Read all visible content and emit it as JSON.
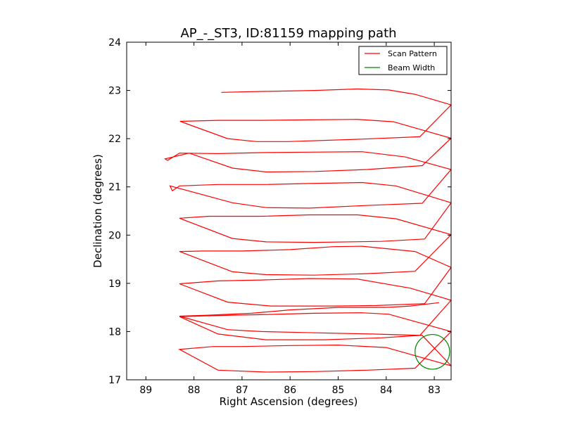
{
  "chart_data": {
    "type": "line",
    "title": "AP_-_ST3, ID:81159 mapping path",
    "xlabel": "Right Ascension (degrees)",
    "ylabel": "Declination (degrees)",
    "xlim": [
      89.4,
      82.65
    ],
    "ylim": [
      17,
      24
    ],
    "x_ticks": [
      "89",
      "88",
      "87",
      "86",
      "85",
      "84",
      "83"
    ],
    "y_ticks": [
      "17",
      "18",
      "19",
      "20",
      "21",
      "22",
      "23",
      "24"
    ],
    "grid": false,
    "legend_position": "top-right",
    "colors": {
      "scan": "#ff0000",
      "beam": "#008000"
    },
    "series": [
      {
        "name": "Scan Pattern",
        "x": [
          87.43,
          86.5,
          85.5,
          84.6,
          83.95,
          83.4,
          82.65,
          83.3,
          84.5,
          86.05,
          86.7,
          87.3,
          88.29,
          87.5,
          86.6,
          85.6,
          84.6,
          83.85,
          82.65,
          83.25,
          84.4,
          85.5,
          86.5,
          87.2,
          88.1,
          88.6,
          88.55,
          88.3,
          87.5,
          86.6,
          85.6,
          84.5,
          83.6,
          82.65,
          83.25,
          84.3,
          85.6,
          86.5,
          87.2,
          88.5,
          88.45,
          88.3,
          87.5,
          86.5,
          85.6,
          84.5,
          83.8,
          82.65,
          83.2,
          84.1,
          85.5,
          86.5,
          87.2,
          88.3,
          87.7,
          86.6,
          85.6,
          84.6,
          83.8,
          82.65,
          83.4,
          84.4,
          85.5,
          86.5,
          87.2,
          88.3,
          87.8,
          87.0,
          86.0,
          85.1,
          84.5,
          83.4,
          82.65,
          83.2,
          84.2,
          85.1,
          86.4,
          87.3,
          88.3,
          87.5,
          86.6,
          85.6,
          84.6,
          83.5,
          82.65,
          83.3,
          84.1,
          85.3,
          86.5,
          87.5,
          88.3,
          87.2,
          86.6,
          85.5,
          84.5,
          83.95,
          82.65,
          83.4,
          84.4,
          85.5,
          86.5,
          87.5,
          88.3,
          87.6,
          87.0,
          86.0,
          85.0,
          84.0,
          83.4,
          82.65,
          83.25,
          84.3,
          85.7,
          86.6,
          87.3,
          88.3,
          87.7,
          86.8,
          86.0,
          85.0,
          84.0,
          83.5,
          82.9
        ],
        "y": [
          22.96,
          22.98,
          23.0,
          23.03,
          23.01,
          22.92,
          22.7,
          22.04,
          21.99,
          21.94,
          21.94,
          22.0,
          22.36,
          22.38,
          22.38,
          22.39,
          22.4,
          22.35,
          22.01,
          21.44,
          21.36,
          21.32,
          21.31,
          21.39,
          21.7,
          21.58,
          21.55,
          21.7,
          21.69,
          21.71,
          21.72,
          21.73,
          21.62,
          21.36,
          20.66,
          20.62,
          20.56,
          20.57,
          20.67,
          21.02,
          20.92,
          21.02,
          21.05,
          21.05,
          21.07,
          21.09,
          21.02,
          20.67,
          19.92,
          19.87,
          19.85,
          19.86,
          19.93,
          20.35,
          20.39,
          20.39,
          20.42,
          20.42,
          20.34,
          20.01,
          19.25,
          19.2,
          19.17,
          19.18,
          19.24,
          19.66,
          19.67,
          19.67,
          19.7,
          19.76,
          19.77,
          19.66,
          19.33,
          18.58,
          18.54,
          18.53,
          18.53,
          18.61,
          18.99,
          19.05,
          19.07,
          19.1,
          19.09,
          18.9,
          18.65,
          17.92,
          17.87,
          17.83,
          17.83,
          17.95,
          18.31,
          18.34,
          18.35,
          18.38,
          18.39,
          18.36,
          18.0,
          17.24,
          17.2,
          17.17,
          17.16,
          17.2,
          17.63,
          17.69,
          17.69,
          17.71,
          17.72,
          17.67,
          17.5,
          17.29,
          17.92,
          17.95,
          17.98,
          18.0,
          18.04,
          18.32,
          18.34,
          18.38,
          18.45,
          18.5,
          18.5,
          18.53,
          18.6
        ]
      },
      {
        "name": "Beam Width",
        "shape": "circle",
        "center": [
          83.04,
          17.58
        ],
        "radius": 0.36
      }
    ]
  }
}
